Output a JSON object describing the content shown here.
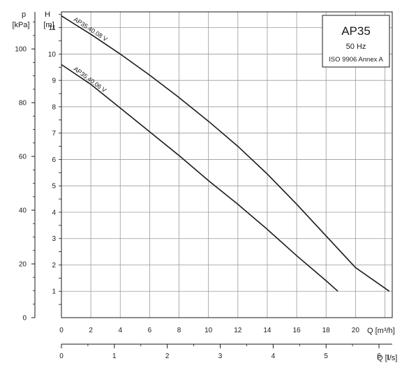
{
  "chart_data": {
    "type": "line",
    "title": "AP35",
    "subtitle": "50 Hz",
    "standard": "ISO 9906 Annex A",
    "xlabel": "Q [m³/h]",
    "xlabel2_prefix": "Q [",
    "xlabel2_unit_bold": "l",
    "xlabel2_suffix": "/s]",
    "ylabel_h_line1": "H",
    "ylabel_h_line2": "[m]",
    "ylabel_p_line1": "p",
    "ylabel_p_line2": "[kPa]",
    "xlim": [
      0,
      22.5
    ],
    "ylim": [
      0,
      11.6
    ],
    "x_ticks": [
      0,
      2,
      4,
      6,
      8,
      10,
      12,
      14,
      16,
      18,
      20
    ],
    "x_ticks_ls": [
      0,
      1,
      2,
      3,
      4,
      5,
      6
    ],
    "y_ticks_m": [
      1,
      2,
      3,
      4,
      5,
      6,
      7,
      8,
      9,
      10,
      11
    ],
    "y_ticks_kpa": [
      0,
      20,
      40,
      60,
      80,
      100
    ],
    "grid": true,
    "series": [
      {
        "name": "AP35.40.08 V",
        "x": [
          0,
          2,
          4,
          6,
          8,
          10,
          12,
          14,
          16,
          18,
          20,
          22.3
        ],
        "y": [
          11.45,
          10.75,
          10.0,
          9.2,
          8.35,
          7.45,
          6.5,
          5.45,
          4.3,
          3.1,
          1.9,
          1.0
        ]
      },
      {
        "name": "AP35.40.06 V",
        "x": [
          0,
          2,
          4,
          6,
          8,
          10,
          12,
          14,
          16,
          18,
          18.8
        ],
        "y": [
          9.6,
          8.85,
          7.95,
          7.05,
          6.15,
          5.2,
          4.3,
          3.35,
          2.35,
          1.4,
          1.0
        ]
      }
    ]
  }
}
